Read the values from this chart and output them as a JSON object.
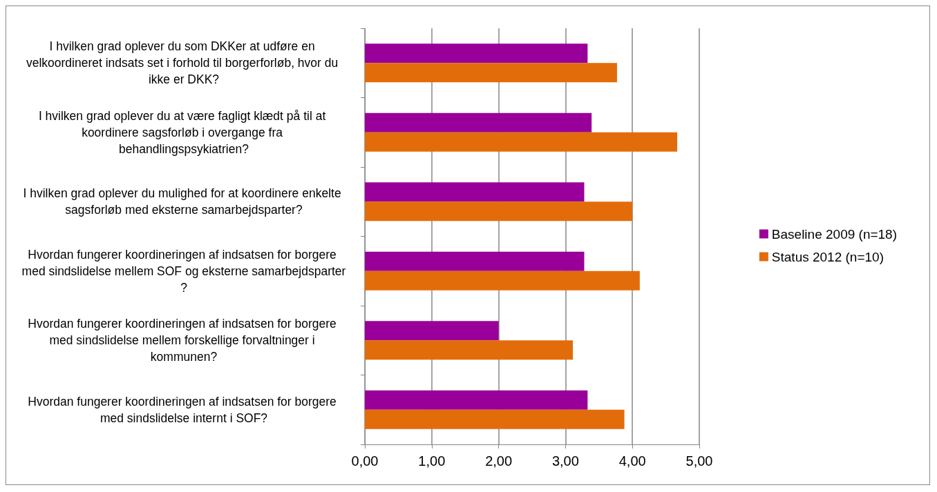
{
  "chart_data": {
    "type": "bar",
    "orientation": "horizontal",
    "categories": [
      "I hvilken grad oplever du som DKKer at udføre en velkoordineret indsats set i forhold til borgerforløb, hvor du ikke er DKK?",
      "I hvilken grad oplever du at være fagligt klædt på til at koordinere sagsforløb i overgange fra behandlingspsykiatrien?",
      "I hvilken grad oplever du mulighed for at koordinere enkelte sagsforløb med eksterne samarbejdsparter?",
      "Hvordan fungerer koordineringen af indsatsen for borgere med sindslidelse mellem SOF og eksterne samarbejdsparter?",
      "Hvordan fungerer koordineringen af indsatsen for borgere med sindslidelse mellem forskellige forvaltninger i kommunen?",
      "Hvordan fungerer koordineringen af indsatsen for borgere med sindslidelse internt i SOF?"
    ],
    "series": [
      {
        "name": "Baseline 2009 (n=18)",
        "color": "#990099",
        "values": [
          3.33,
          3.39,
          3.28,
          3.28,
          2.0,
          3.33
        ]
      },
      {
        "name": "Status 2012 (n=10)",
        "color": "#e36c0a",
        "values": [
          3.77,
          4.67,
          4.0,
          4.11,
          3.11,
          3.88
        ]
      }
    ],
    "xlim": [
      0,
      5
    ],
    "xticks": [
      {
        "value": 0,
        "label": "0,00"
      },
      {
        "value": 1,
        "label": "1,00"
      },
      {
        "value": 2,
        "label": "2,00"
      },
      {
        "value": 3,
        "label": "3,00"
      },
      {
        "value": 4,
        "label": "4,00"
      },
      {
        "value": 5,
        "label": "5,00"
      }
    ],
    "grid": "x",
    "legend": "right"
  }
}
